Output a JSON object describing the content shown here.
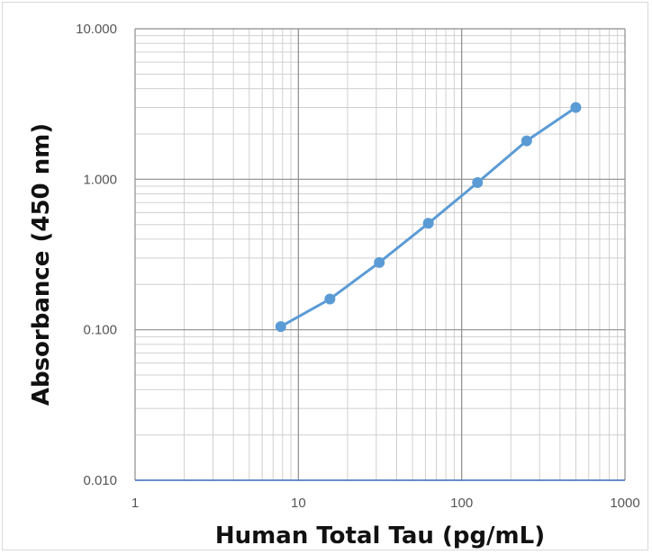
{
  "chart_data": {
    "type": "line",
    "title": "",
    "xlabel": "Human Total Tau (pg/mL)",
    "ylabel": "Absorbance  (450 nm)",
    "x_scale": "log",
    "y_scale": "log",
    "xlim": [
      1,
      1000
    ],
    "ylim": [
      0.01,
      10
    ],
    "x_tick_labels": [
      "1",
      "10",
      "100",
      "1000"
    ],
    "y_tick_labels": [
      "0.010",
      "0.100",
      "1.000",
      "10.000"
    ],
    "grid": true,
    "legend": "none",
    "series": [
      {
        "color": "#5b9bd5",
        "x": [
          7.8,
          15.6,
          31.3,
          62.5,
          125,
          250,
          500
        ],
        "y": [
          0.105,
          0.16,
          0.28,
          0.51,
          0.95,
          1.8,
          3.0
        ]
      }
    ]
  }
}
